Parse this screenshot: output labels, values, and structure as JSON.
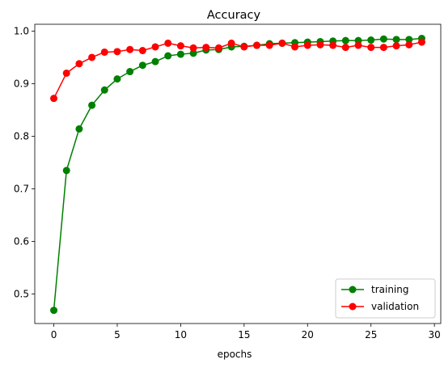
{
  "chart_data": {
    "type": "line",
    "title": "Accuracy",
    "xlabel": "epochs",
    "ylabel": "",
    "xlim": [
      -1.5,
      30.5
    ],
    "ylim": [
      0.444,
      1.013
    ],
    "xticks": [
      0,
      5,
      10,
      15,
      20,
      25,
      30
    ],
    "yticks": [
      0.5,
      0.6,
      0.7,
      0.8,
      0.9,
      1.0
    ],
    "ytick_labels": [
      "0.5",
      "0.6",
      "0.7",
      "0.8",
      "0.9",
      "1.0"
    ],
    "grid": false,
    "legend_position": "lower-right",
    "x": [
      0,
      1,
      2,
      3,
      4,
      5,
      6,
      7,
      8,
      9,
      10,
      11,
      12,
      13,
      14,
      15,
      16,
      17,
      18,
      19,
      20,
      21,
      22,
      23,
      24,
      25,
      26,
      27,
      28,
      29
    ],
    "series": [
      {
        "name": "training",
        "color": "#008000",
        "marker": "circle",
        "values": [
          0.469,
          0.735,
          0.814,
          0.859,
          0.888,
          0.909,
          0.923,
          0.935,
          0.942,
          0.953,
          0.956,
          0.958,
          0.964,
          0.965,
          0.97,
          0.971,
          0.973,
          0.976,
          0.977,
          0.978,
          0.979,
          0.98,
          0.981,
          0.982,
          0.982,
          0.983,
          0.985,
          0.984,
          0.984,
          0.986
        ]
      },
      {
        "name": "validation",
        "color": "#ff0000",
        "marker": "circle",
        "values": [
          0.872,
          0.92,
          0.938,
          0.95,
          0.96,
          0.961,
          0.965,
          0.963,
          0.97,
          0.977,
          0.972,
          0.968,
          0.969,
          0.968,
          0.977,
          0.97,
          0.973,
          0.973,
          0.977,
          0.97,
          0.973,
          0.974,
          0.973,
          0.969,
          0.973,
          0.969,
          0.969,
          0.972,
          0.974,
          0.979
        ]
      }
    ]
  }
}
